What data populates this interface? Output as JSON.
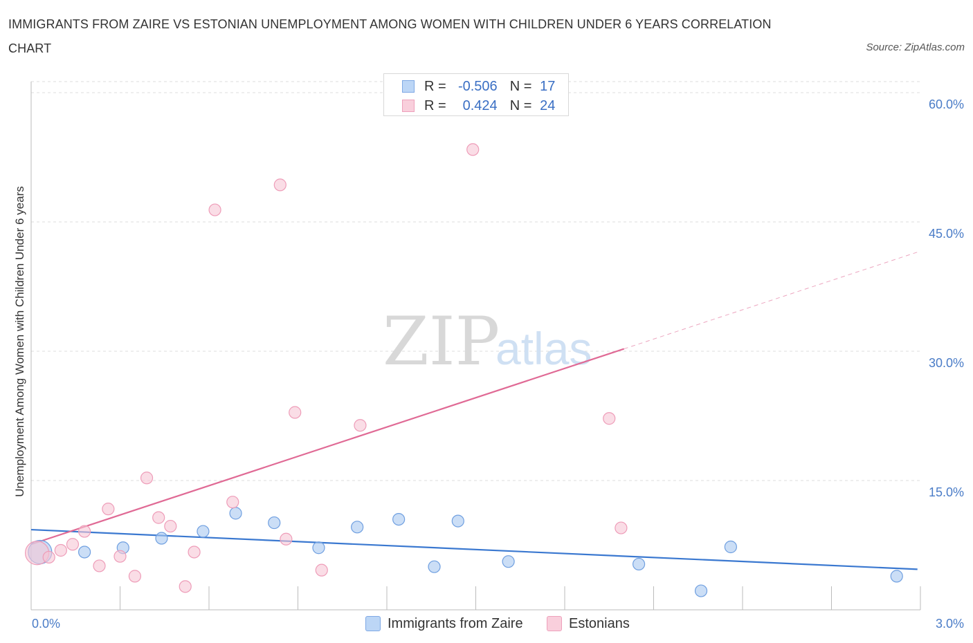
{
  "title": "IMMIGRANTS FROM ZAIRE VS ESTONIAN UNEMPLOYMENT AMONG WOMEN WITH CHILDREN UNDER 6 YEARS CORRELATION CHART",
  "source": "Source: ZipAtlas.com",
  "watermark": {
    "zip": "ZIP",
    "atlas": "atlas"
  },
  "legend": {
    "r_label": "R =",
    "n_label": "N =",
    "rows": [
      {
        "name": "Immigrants from Zaire",
        "r": "-0.506",
        "n": "17",
        "color": "#a8c8f0"
      },
      {
        "name": "Estonians",
        "r": "0.424",
        "n": "24",
        "color": "#f5b8cc"
      }
    ]
  },
  "chart_data": {
    "type": "scatter",
    "title": "IMMIGRANTS FROM ZAIRE VS ESTONIAN UNEMPLOYMENT AMONG WOMEN WITH CHILDREN UNDER 6 YEARS CORRELATION CHART",
    "xlabel": "",
    "ylabel": "Unemployment Among Women with Children Under 6 years",
    "xlim": [
      0,
      3.0
    ],
    "ylim": [
      0,
      60
    ],
    "x_tick_labels": [
      "0.0%",
      "3.0%"
    ],
    "y_ticks": [
      15,
      30,
      45,
      60
    ],
    "y_tick_labels": [
      "15.0%",
      "30.0%",
      "45.0%",
      "60.0%"
    ],
    "grid": true,
    "series": [
      {
        "name": "Immigrants from Zaire",
        "color": "#a8c8f0",
        "stroke": "#6f9fe0",
        "line_color": "#3a78d0",
        "trend": {
          "x": [
            0.0,
            2.99
          ],
          "y": [
            9.3,
            4.7
          ],
          "dashed_from": null
        },
        "points": [
          {
            "x": 0.03,
            "y": 6.7,
            "big": true
          },
          {
            "x": 0.18,
            "y": 6.7
          },
          {
            "x": 0.31,
            "y": 7.2
          },
          {
            "x": 0.44,
            "y": 8.3
          },
          {
            "x": 0.58,
            "y": 9.1
          },
          {
            "x": 0.69,
            "y": 11.2
          },
          {
            "x": 0.82,
            "y": 10.1
          },
          {
            "x": 0.97,
            "y": 7.2
          },
          {
            "x": 1.1,
            "y": 9.6
          },
          {
            "x": 1.24,
            "y": 10.5
          },
          {
            "x": 1.36,
            "y": 5.0
          },
          {
            "x": 1.44,
            "y": 10.3
          },
          {
            "x": 1.61,
            "y": 5.6
          },
          {
            "x": 2.05,
            "y": 5.3
          },
          {
            "x": 2.26,
            "y": 2.2
          },
          {
            "x": 2.36,
            "y": 7.3
          },
          {
            "x": 2.92,
            "y": 3.9
          }
        ]
      },
      {
        "name": "Estonians",
        "color": "#f7c6d6",
        "stroke": "#ee9cb8",
        "line_color": "#e06a95",
        "trend": {
          "x": [
            0.0,
            2.99
          ],
          "y": [
            7.6,
            41.5
          ],
          "dashed_from": 2.0
        },
        "points": [
          {
            "x": 0.02,
            "y": 6.6,
            "big": true
          },
          {
            "x": 0.06,
            "y": 6.1
          },
          {
            "x": 0.1,
            "y": 6.9
          },
          {
            "x": 0.14,
            "y": 7.6
          },
          {
            "x": 0.18,
            "y": 9.1
          },
          {
            "x": 0.23,
            "y": 5.1
          },
          {
            "x": 0.26,
            "y": 11.7
          },
          {
            "x": 0.3,
            "y": 6.2
          },
          {
            "x": 0.35,
            "y": 3.9
          },
          {
            "x": 0.39,
            "y": 15.3
          },
          {
            "x": 0.43,
            "y": 10.7
          },
          {
            "x": 0.47,
            "y": 9.7
          },
          {
            "x": 0.52,
            "y": 2.7
          },
          {
            "x": 0.55,
            "y": 6.7
          },
          {
            "x": 0.62,
            "y": 46.4
          },
          {
            "x": 0.68,
            "y": 12.5
          },
          {
            "x": 0.84,
            "y": 49.3
          },
          {
            "x": 0.86,
            "y": 8.2
          },
          {
            "x": 0.89,
            "y": 22.9
          },
          {
            "x": 0.98,
            "y": 4.6
          },
          {
            "x": 1.11,
            "y": 21.4
          },
          {
            "x": 1.49,
            "y": 53.4
          },
          {
            "x": 1.95,
            "y": 22.2
          },
          {
            "x": 1.99,
            "y": 9.5
          }
        ]
      }
    ]
  }
}
